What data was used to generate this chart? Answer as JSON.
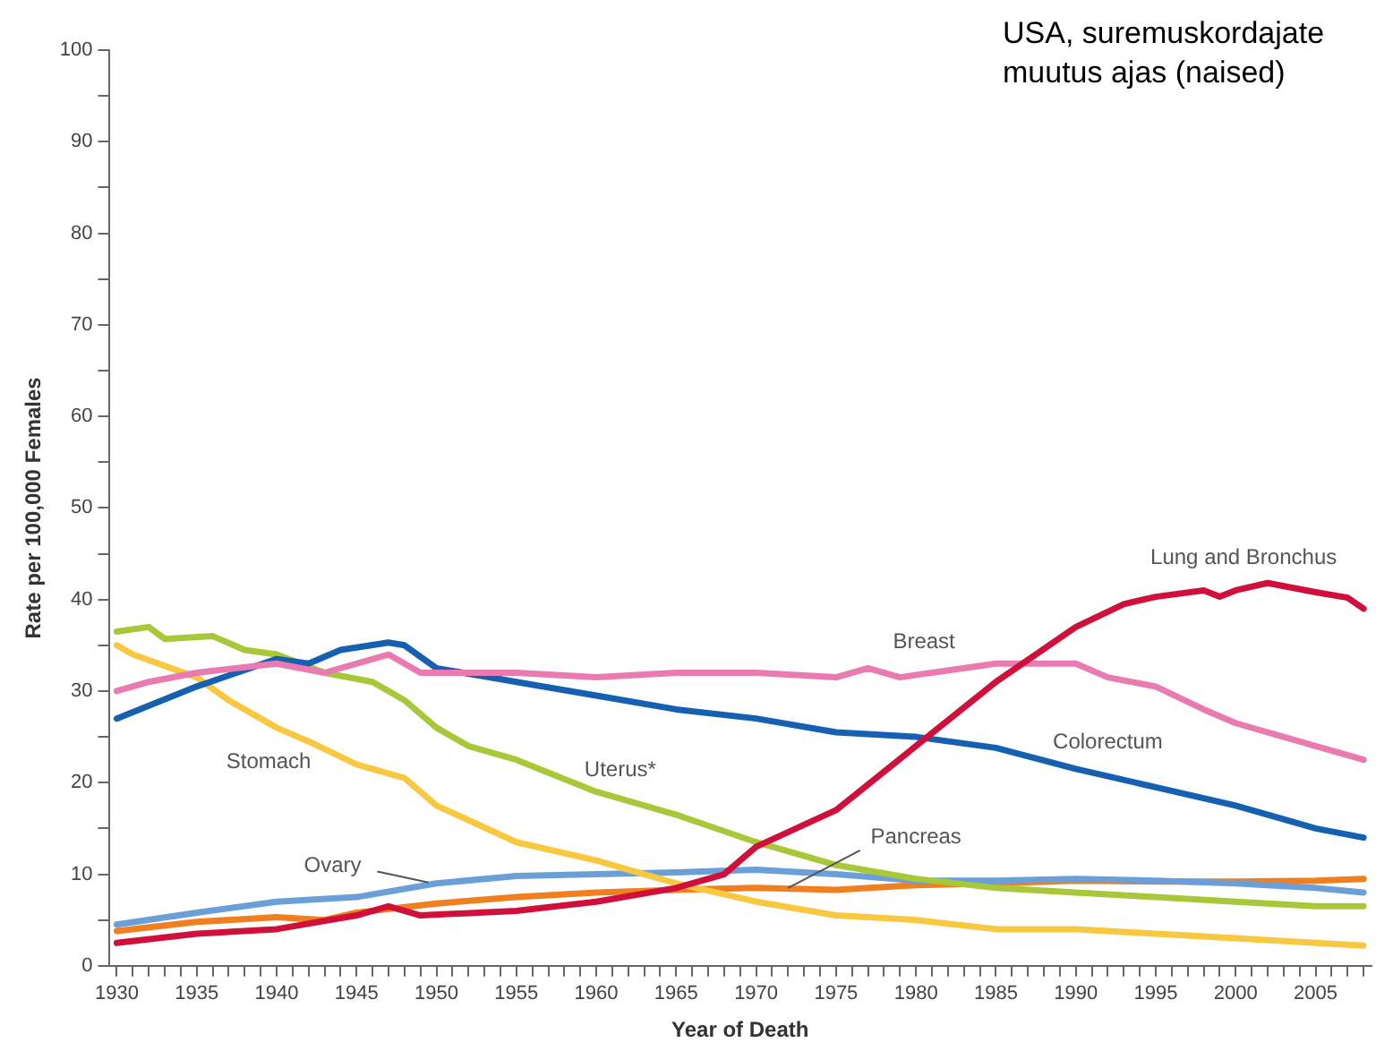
{
  "chart_data": {
    "type": "line",
    "title": "USA, suremuskordajate muutus ajas (naised)",
    "xlabel": "Year of Death",
    "ylabel": "Rate per 100,000 Females",
    "xlim": [
      1929.5,
      2008.5
    ],
    "xticks": [
      1930,
      {
        "value": 1931,
        "label": null
      },
      {
        "value": 1932,
        "label": null
      },
      {
        "value": 1933,
        "label": null
      },
      {
        "value": 1934,
        "label": null
      },
      1935,
      {
        "value": 1936,
        "label": null
      },
      {
        "value": 1937,
        "label": null
      },
      {
        "value": 1938,
        "label": null
      },
      {
        "value": 1939,
        "label": null
      },
      1940,
      {
        "value": 1941,
        "label": null
      },
      {
        "value": 1942,
        "label": null
      },
      {
        "value": 1943,
        "label": null
      },
      {
        "value": 1944,
        "label": null
      },
      1945,
      {
        "value": 1946,
        "label": null
      },
      {
        "value": 1947,
        "label": null
      },
      {
        "value": 1948,
        "label": null
      },
      {
        "value": 1949,
        "label": null
      },
      1950,
      {
        "value": 1951,
        "label": null
      },
      {
        "value": 1952,
        "label": null
      },
      {
        "value": 1953,
        "label": null
      },
      {
        "value": 1954,
        "label": null
      },
      1955,
      {
        "value": 1956,
        "label": null
      },
      {
        "value": 1957,
        "label": null
      },
      {
        "value": 1958,
        "label": null
      },
      {
        "value": 1959,
        "label": null
      },
      1960,
      {
        "value": 1961,
        "label": null
      },
      {
        "value": 1962,
        "label": null
      },
      {
        "value": 1963,
        "label": null
      },
      {
        "value": 1964,
        "label": null
      },
      1965,
      {
        "value": 1966,
        "label": null
      },
      {
        "value": 1967,
        "label": null
      },
      {
        "value": 1968,
        "label": null
      },
      {
        "value": 1969,
        "label": null
      },
      1970,
      {
        "value": 1971,
        "label": null
      },
      {
        "value": 1972,
        "label": null
      },
      {
        "value": 1973,
        "label": null
      },
      {
        "value": 1974,
        "label": null
      },
      1975,
      {
        "value": 1976,
        "label": null
      },
      {
        "value": 1977,
        "label": null
      },
      {
        "value": 1978,
        "label": null
      },
      {
        "value": 1979,
        "label": null
      },
      1980,
      {
        "value": 1981,
        "label": null
      },
      {
        "value": 1982,
        "label": null
      },
      {
        "value": 1983,
        "label": null
      },
      {
        "value": 1984,
        "label": null
      },
      1985,
      {
        "value": 1986,
        "label": null
      },
      {
        "value": 1987,
        "label": null
      },
      {
        "value": 1988,
        "label": null
      },
      {
        "value": 1989,
        "label": null
      },
      1990,
      {
        "value": 1991,
        "label": null
      },
      {
        "value": 1992,
        "label": null
      },
      {
        "value": 1993,
        "label": null
      },
      {
        "value": 1994,
        "label": null
      },
      1995,
      {
        "value": 1996,
        "label": null
      },
      {
        "value": 1997,
        "label": null
      },
      {
        "value": 1998,
        "label": null
      },
      {
        "value": 1999,
        "label": null
      },
      2000,
      {
        "value": 2001,
        "label": null
      },
      {
        "value": 2002,
        "label": null
      },
      {
        "value": 2003,
        "label": null
      },
      {
        "value": 2004,
        "label": null
      },
      2005,
      {
        "value": 2006,
        "label": null
      },
      {
        "value": 2007,
        "label": null
      },
      {
        "value": 2008,
        "label": null
      }
    ],
    "ylim": [
      0,
      100
    ],
    "yticks": [
      0,
      {
        "value": 5,
        "label": null
      },
      10,
      {
        "value": 15,
        "label": null
      },
      20,
      {
        "value": 25,
        "label": null
      },
      30,
      {
        "value": 35,
        "label": null
      },
      40,
      {
        "value": 45,
        "label": null
      },
      50,
      {
        "value": 55,
        "label": null
      },
      60,
      {
        "value": 65,
        "label": null
      },
      70,
      {
        "value": 75,
        "label": null
      },
      80,
      {
        "value": 85,
        "label": null
      },
      90,
      {
        "value": 95,
        "label": null
      },
      100
    ],
    "grid": false,
    "legend": false,
    "marker": "none",
    "line_style": "solid",
    "series": [
      {
        "name": "Lung and Bronchus",
        "color": "#d0103a",
        "x": [
          1930,
          1935,
          1940,
          1945,
          1947,
          1949,
          1955,
          1960,
          1965,
          1968,
          1970,
          1975,
          1980,
          1985,
          1990,
          1993,
          1995,
          1998,
          1999,
          2000,
          2002,
          2005,
          2007,
          2008
        ],
        "values": [
          2.5,
          3.5,
          4,
          5.5,
          6.5,
          5.5,
          6,
          7,
          8.5,
          10,
          13,
          17,
          24,
          31,
          37,
          39.5,
          40.3,
          41,
          40.3,
          41,
          41.8,
          40.8,
          40.2,
          39
        ]
      },
      {
        "name": "Breast",
        "color": "#e97bb0",
        "x": [
          1930,
          1932,
          1935,
          1940,
          1943,
          1947,
          1948,
          1949,
          1955,
          1960,
          1965,
          1970,
          1975,
          1977,
          1979,
          1985,
          1988,
          1990,
          1992,
          1995,
          1998,
          2000,
          2005,
          2008
        ],
        "values": [
          30,
          31,
          32,
          33,
          32,
          34,
          33,
          32,
          32,
          31.5,
          32,
          32,
          31.5,
          32.5,
          31.5,
          33,
          33,
          33,
          31.5,
          30.5,
          28,
          26.5,
          24,
          22.5
        ]
      },
      {
        "name": "Colorectum",
        "color": "#1560b0",
        "x": [
          1930,
          1935,
          1940,
          1942,
          1944,
          1947,
          1948,
          1950,
          1955,
          1960,
          1965,
          1970,
          1975,
          1980,
          1985,
          1990,
          1995,
          2000,
          2003,
          2005,
          2008
        ],
        "values": [
          27,
          30.5,
          33.5,
          33,
          34.5,
          35.3,
          35,
          32.5,
          31,
          29.5,
          28,
          27,
          25.5,
          25,
          23.8,
          21.5,
          19.5,
          17.5,
          16,
          15,
          14
        ]
      },
      {
        "name": "Uterus*",
        "color": "#a8c83a",
        "x": [
          1930,
          1932,
          1933,
          1936,
          1938,
          1940,
          1943,
          1946,
          1948,
          1950,
          1952,
          1955,
          1960,
          1965,
          1970,
          1975,
          1980,
          1985,
          1990,
          1995,
          2000,
          2005,
          2008
        ],
        "values": [
          36.5,
          37,
          35.7,
          36,
          34.5,
          34,
          32,
          31,
          29,
          26,
          24,
          22.5,
          19,
          16.5,
          13.5,
          11,
          9.5,
          8.5,
          8,
          7.5,
          7,
          6.5,
          6.5
        ]
      },
      {
        "name": "Stomach",
        "color": "#f8c840",
        "x": [
          1930,
          1931,
          1935,
          1937,
          1940,
          1942,
          1945,
          1948,
          1950,
          1955,
          1960,
          1963,
          1965,
          1970,
          1975,
          1980,
          1985,
          1990,
          1995,
          2000,
          2005,
          2008
        ],
        "values": [
          35,
          34,
          31.5,
          29,
          26,
          24.5,
          22,
          20.5,
          17.5,
          13.5,
          11.5,
          10,
          9,
          7,
          5.5,
          5,
          4,
          4,
          3.5,
          3,
          2.5,
          2.2
        ]
      },
      {
        "name": "Ovary",
        "color": "#6a9fd8",
        "x": [
          1930,
          1935,
          1940,
          1945,
          1950,
          1955,
          1960,
          1965,
          1970,
          1975,
          1980,
          1985,
          1990,
          1995,
          2000,
          2005,
          2008
        ],
        "values": [
          4.5,
          5.8,
          7,
          7.5,
          9,
          9.8,
          10,
          10.2,
          10.5,
          10,
          9.3,
          9.3,
          9.5,
          9.3,
          9,
          8.5,
          8
        ]
      },
      {
        "name": "Pancreas",
        "color": "#f07f20",
        "x": [
          1930,
          1935,
          1940,
          1943,
          1945,
          1950,
          1955,
          1960,
          1965,
          1970,
          1975,
          1980,
          1985,
          1990,
          1995,
          2000,
          2005,
          2008
        ],
        "values": [
          3.8,
          4.8,
          5.3,
          5,
          5.8,
          6.8,
          7.5,
          8,
          8.3,
          8.5,
          8.3,
          8.8,
          9,
          9.3,
          9.2,
          9.2,
          9.3,
          9.5
        ]
      }
    ]
  }
}
